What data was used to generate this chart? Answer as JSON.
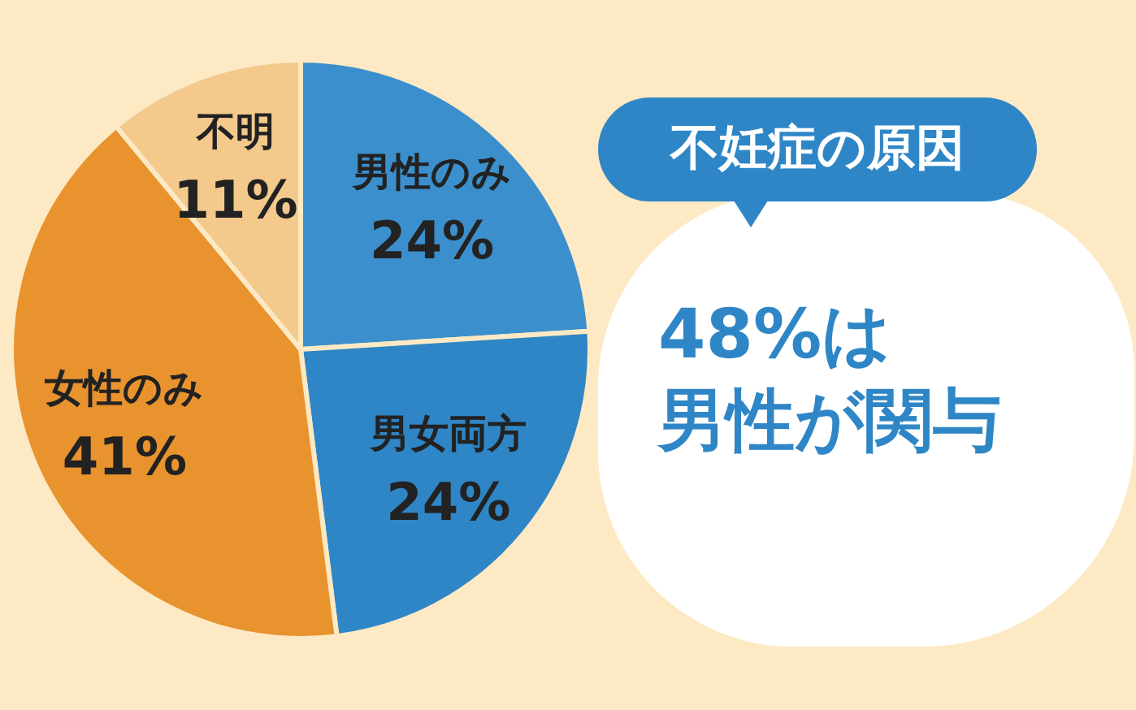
{
  "chart_data": {
    "type": "pie",
    "title": "不妊症の原因",
    "categories": [
      "男性のみ",
      "男女両方",
      "女性のみ",
      "不明"
    ],
    "values": [
      24,
      24,
      41,
      11
    ],
    "value_labels": [
      "24%",
      "24%",
      "41%",
      "11%"
    ],
    "colors": [
      "#3b8fcc",
      "#2f86c6",
      "#e8932e",
      "#f3c98c"
    ],
    "annotations": [
      "48%は",
      "男性が関与"
    ]
  }
}
